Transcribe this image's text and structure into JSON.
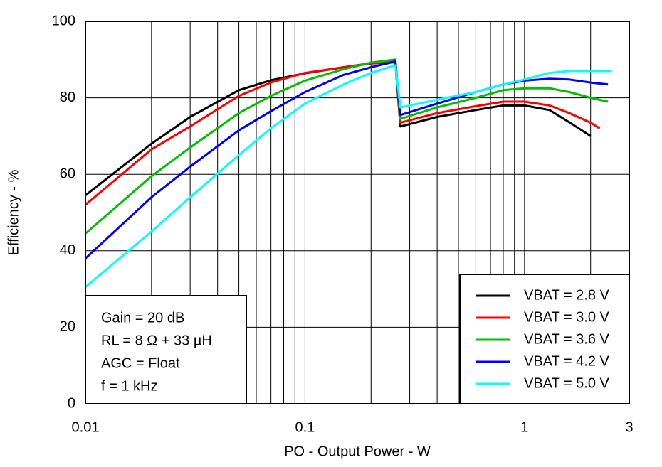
{
  "chart_data": {
    "type": "line",
    "xlabel": "PO - Output Power - W",
    "ylabel": "Efficiency - %",
    "xscale": "log",
    "xlim": [
      0.01,
      3
    ],
    "ylim": [
      0,
      100
    ],
    "xticks": [
      0.01,
      0.1,
      1,
      3
    ],
    "xminor_ticks": [
      0.02,
      0.03,
      0.04,
      0.05,
      0.06,
      0.07,
      0.08,
      0.09,
      0.2,
      0.3,
      0.4,
      0.5,
      0.6,
      0.7,
      0.8,
      0.9,
      2
    ],
    "yticks": [
      0,
      20,
      40,
      60,
      80,
      100
    ],
    "grid": true,
    "legend": "lower right",
    "annotations": [
      "Gain = 20 dB",
      "RL = 8 Ω + 33 µH",
      "AGC = Float",
      "f = 1 kHz"
    ],
    "series": [
      {
        "name": "VBAT = 2.8 V",
        "color": "#000000",
        "x": [
          0.01,
          0.02,
          0.03,
          0.05,
          0.07,
          0.1,
          0.15,
          0.2,
          0.258,
          0.272,
          0.4,
          0.6,
          0.8,
          1,
          1.3,
          1.6,
          2
        ],
        "values": [
          54.5,
          68,
          75,
          82,
          84.6,
          86.4,
          88,
          89,
          89.3,
          72.5,
          75,
          76.8,
          78,
          78,
          76.8,
          73.6,
          70
        ]
      },
      {
        "name": "VBAT = 3.0 V",
        "color": "#ff0000",
        "x": [
          0.01,
          0.02,
          0.03,
          0.05,
          0.07,
          0.1,
          0.15,
          0.2,
          0.258,
          0.272,
          0.4,
          0.6,
          0.8,
          1,
          1.3,
          1.6,
          2,
          2.2
        ],
        "values": [
          52,
          66.5,
          72.5,
          80.5,
          84,
          86.5,
          88,
          89,
          89.5,
          73.5,
          76,
          77.8,
          79,
          79,
          78,
          76,
          73.5,
          72
        ]
      },
      {
        "name": "VBAT = 3.6 V",
        "color": "#00c000",
        "x": [
          0.01,
          0.02,
          0.03,
          0.05,
          0.07,
          0.1,
          0.15,
          0.2,
          0.258,
          0.272,
          0.4,
          0.6,
          0.8,
          1,
          1.3,
          1.6,
          2,
          2.4
        ],
        "values": [
          44.5,
          59.5,
          67,
          76,
          80.5,
          84.5,
          87.5,
          89.2,
          90,
          74.5,
          77.5,
          80,
          82,
          82.5,
          82.5,
          81.5,
          80,
          79
        ]
      },
      {
        "name": "VBAT = 4.2 V",
        "color": "#0000ff",
        "x": [
          0.01,
          0.02,
          0.03,
          0.05,
          0.07,
          0.1,
          0.15,
          0.2,
          0.258,
          0.272,
          0.4,
          0.6,
          0.8,
          1,
          1.3,
          1.6,
          2,
          2.4
        ],
        "values": [
          38,
          54,
          62,
          71.5,
          76.5,
          81.5,
          86,
          88,
          89.5,
          75.5,
          78.5,
          81.5,
          83.5,
          84.5,
          85,
          84.8,
          84,
          83.5
        ]
      },
      {
        "name": "VBAT = 5.0 V",
        "color": "#00ffff",
        "x": [
          0.01,
          0.02,
          0.03,
          0.05,
          0.07,
          0.1,
          0.15,
          0.2,
          0.258,
          0.272,
          0.4,
          0.6,
          0.8,
          1,
          1.3,
          1.6,
          2,
          2.5
        ],
        "values": [
          30.5,
          45,
          54,
          65,
          72,
          78.5,
          83.5,
          86.5,
          88.5,
          77.5,
          79.5,
          81.5,
          83.5,
          84.8,
          86.5,
          87,
          87,
          87
        ]
      }
    ]
  }
}
